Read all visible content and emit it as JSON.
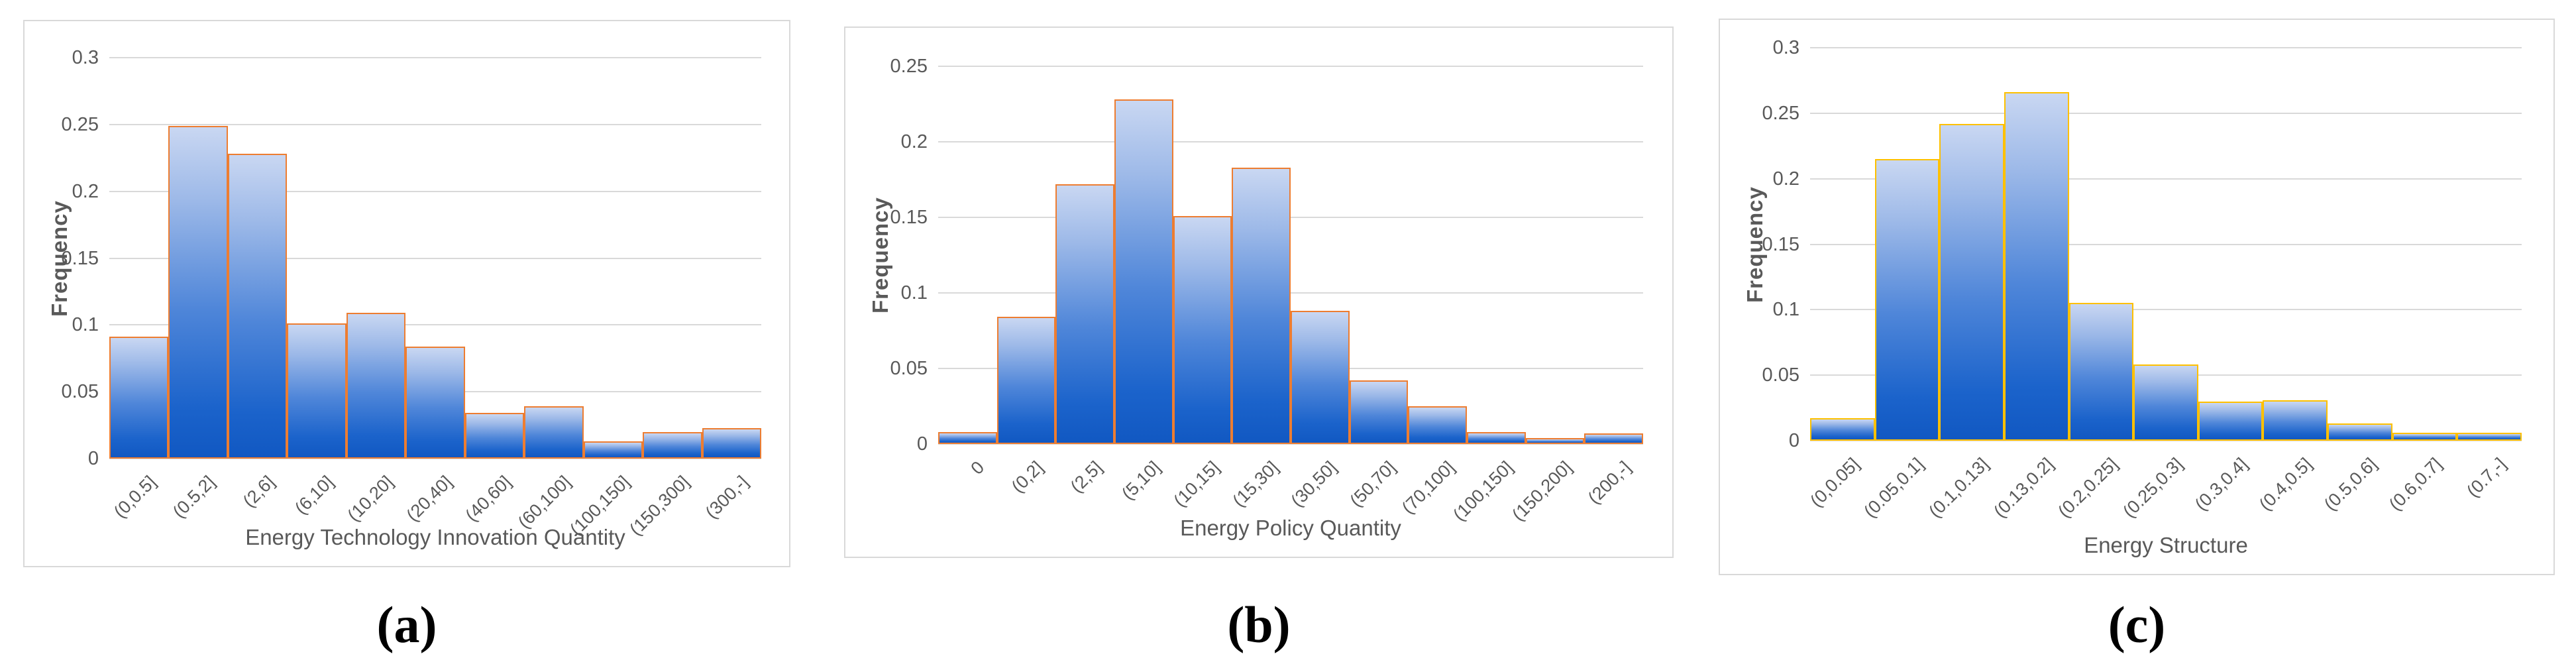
{
  "figure": {
    "background": "#ffffff",
    "panel_border_color": "#d9d9d9",
    "gridline_color": "#d9d9d9",
    "tick_label_color": "#595959",
    "axis_title_color": "#595959",
    "bar_fill_top": "#c9d7f2",
    "bar_fill_bottom": "#1158c2"
  },
  "chart_data": [
    {
      "type": "bar",
      "panel": "a",
      "caption": "(a)",
      "title": "",
      "xlabel": "Energy Technology Innovation Quantity",
      "ylabel": "Frequency",
      "categories": [
        "(0,0.5]",
        "(0.5,2]",
        "(2,6]",
        "(6,10]",
        "(10,20]",
        "(20,40]",
        "(40,60]",
        "(60,100]",
        "(100,150]",
        "(150,300]",
        "(300,-]"
      ],
      "values": [
        0.091,
        0.249,
        0.228,
        0.101,
        0.109,
        0.084,
        0.034,
        0.039,
        0.013,
        0.02,
        0.023
      ],
      "ylim": [
        0,
        0.3
      ],
      "yticks": [
        0,
        0.05,
        0.1,
        0.15,
        0.2,
        0.25,
        0.3
      ],
      "ytick_labels": [
        "0",
        "0.05",
        "0.1",
        "0.15",
        "0.2",
        "0.25",
        "0.3"
      ],
      "bar_border_color": "#ED7D31",
      "grid": true,
      "legend": "none"
    },
    {
      "type": "bar",
      "panel": "b",
      "caption": "(b)",
      "title": "",
      "xlabel": "Energy Policy Quantity",
      "ylabel": "Frequency",
      "categories": [
        "0",
        "(0,2]",
        "(2,5]",
        "(5,10]",
        "(10,15]",
        "(15,30]",
        "(30,50]",
        "(50,70]",
        "(70,100]",
        "(100,150]",
        "(150,200]",
        "(200,-]"
      ],
      "values": [
        0.008,
        0.084,
        0.172,
        0.228,
        0.151,
        0.183,
        0.088,
        0.042,
        0.025,
        0.008,
        0.004,
        0.007
      ],
      "ylim": [
        0,
        0.25
      ],
      "yticks": [
        0,
        0.05,
        0.1,
        0.15,
        0.2,
        0.25
      ],
      "ytick_labels": [
        "0",
        "0.05",
        "0.1",
        "0.15",
        "0.2",
        "0.25"
      ],
      "bar_border_color": "#ED7D31",
      "grid": true,
      "legend": "none"
    },
    {
      "type": "bar",
      "panel": "c",
      "caption": "(c)",
      "title": "",
      "xlabel": "Energy Structure",
      "ylabel": "Frequency",
      "categories": [
        "(0,0.05]",
        "(0.05,0.1]",
        "(0.1,0.13]",
        "(0.13,0.2]",
        "(0.2,0.25]",
        "(0.25,0.3]",
        "(0.3,0.4]",
        "(0.4,0.5]",
        "(0.5,0.6]",
        "(0.6,0.7]",
        "(0.7,-]"
      ],
      "values": [
        0.017,
        0.215,
        0.242,
        0.266,
        0.105,
        0.058,
        0.03,
        0.031,
        0.013,
        0.006,
        0.006
      ],
      "ylim": [
        0,
        0.3
      ],
      "yticks": [
        0,
        0.05,
        0.1,
        0.15,
        0.2,
        0.25,
        0.3
      ],
      "ytick_labels": [
        "0",
        "0.05",
        "0.1",
        "0.15",
        "0.2",
        "0.25",
        "0.3"
      ],
      "bar_border_color": "#FFC000",
      "grid": true,
      "legend": "none"
    }
  ]
}
